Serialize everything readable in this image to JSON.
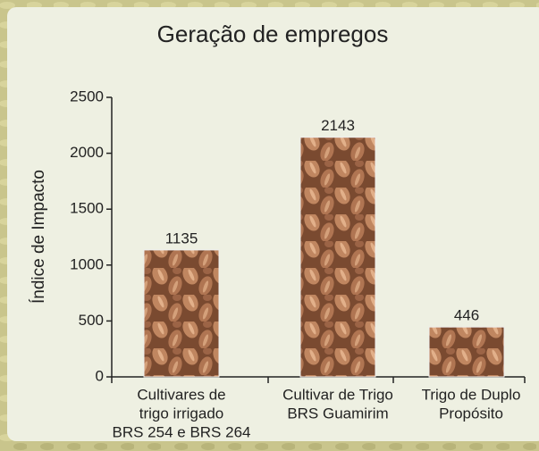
{
  "chart_data": {
    "type": "bar",
    "title": "Geração de empregos",
    "y_label": "Índice de Impacto",
    "categories": [
      [
        "Cultivares de",
        "trigo irrigado",
        "BRS 254 e BRS 264"
      ],
      [
        "Cultivar de Trigo",
        "BRS Guamirim"
      ],
      [
        "Trigo de Duplo",
        "Propósito"
      ]
    ],
    "values": [
      1135,
      2143,
      446
    ],
    "ylim": [
      0,
      2500
    ],
    "yticks": [
      0,
      500,
      1000,
      1500,
      2000,
      2500
    ],
    "grid": false
  }
}
